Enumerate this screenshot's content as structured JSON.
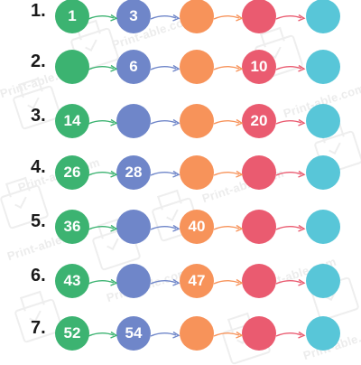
{
  "watermark": {
    "text": "Print-able.com"
  },
  "colors": {
    "green": "#3cb371",
    "blue": "#6f86c9",
    "orange": "#f7935a",
    "red": "#ea5b70",
    "cyan": "#58c6d8"
  },
  "rows": [
    {
      "label": "1.",
      "values": [
        "1",
        "3",
        "",
        "",
        ""
      ]
    },
    {
      "label": "2.",
      "values": [
        "",
        "6",
        "",
        "10",
        ""
      ]
    },
    {
      "label": "3.",
      "values": [
        "14",
        "",
        "",
        "20",
        ""
      ]
    },
    {
      "label": "4.",
      "values": [
        "26",
        "28",
        "",
        "",
        ""
      ]
    },
    {
      "label": "5.",
      "values": [
        "36",
        "",
        "40",
        "",
        ""
      ]
    },
    {
      "label": "6.",
      "values": [
        "43",
        "",
        "47",
        "",
        ""
      ]
    },
    {
      "label": "7.",
      "values": [
        "52",
        "54",
        "",
        "",
        ""
      ]
    }
  ]
}
